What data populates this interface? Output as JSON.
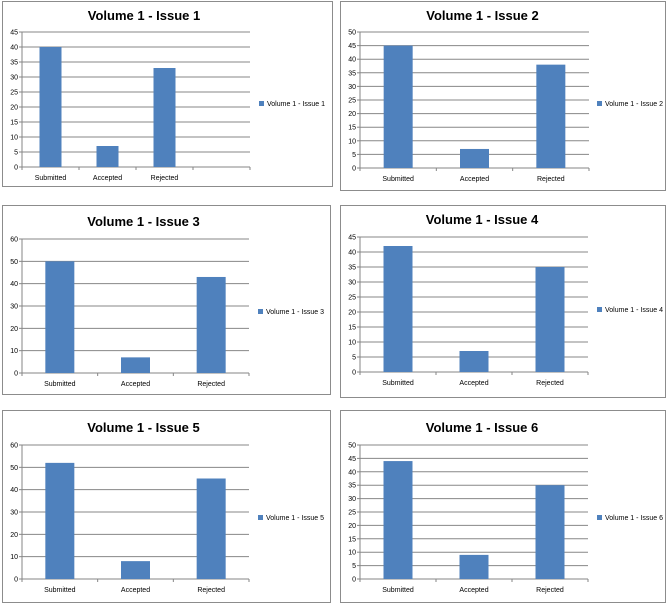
{
  "colors": {
    "bar": "#4f81bd",
    "grid": "#878787",
    "axis": "#868686"
  },
  "chart_data": [
    {
      "type": "bar",
      "title": "Volume 1 - Issue 1",
      "categories": [
        "Submitted",
        "Accepted",
        "Rejected"
      ],
      "series": [
        {
          "name": "Volume 1 - Issue 1",
          "values": [
            40,
            7,
            33
          ]
        }
      ],
      "ylim": [
        0,
        45
      ],
      "yticks": [
        "0",
        "5",
        "10",
        "15",
        "20",
        "25",
        "30",
        "35",
        "40",
        "45"
      ],
      "grid": true,
      "legend": "right"
    },
    {
      "type": "bar",
      "title": "Volume 1 - Issue 2",
      "categories": [
        "Submitted",
        "Accepted",
        "Rejected"
      ],
      "series": [
        {
          "name": "Volume 1 - Issue 2",
          "values": [
            45,
            7,
            38
          ]
        }
      ],
      "ylim": [
        0,
        50
      ],
      "yticks": [
        "0",
        "5",
        "10",
        "15",
        "20",
        "25",
        "30",
        "35",
        "40",
        "45",
        "50"
      ],
      "grid": true,
      "legend": "right"
    },
    {
      "type": "bar",
      "title": "Volume 1 - Issue 3",
      "categories": [
        "Submitted",
        "Accepted",
        "Rejected"
      ],
      "series": [
        {
          "name": "Volume 1 - Issue 3",
          "values": [
            50,
            7,
            43
          ]
        }
      ],
      "ylim": [
        0,
        60
      ],
      "yticks": [
        "0",
        "10",
        "20",
        "30",
        "40",
        "50",
        "60"
      ],
      "grid": true,
      "legend": "right"
    },
    {
      "type": "bar",
      "title": "Volume 1 - Issue 4",
      "categories": [
        "Submitted",
        "Accepted",
        "Rejected"
      ],
      "series": [
        {
          "name": "Volume 1 - Issue 4",
          "values": [
            42,
            7,
            35
          ]
        }
      ],
      "ylim": [
        0,
        45
      ],
      "yticks": [
        "0",
        "5",
        "10",
        "15",
        "20",
        "25",
        "30",
        "35",
        "40",
        "45"
      ],
      "grid": true,
      "legend": "right"
    },
    {
      "type": "bar",
      "title": "Volume 1 - Issue 5",
      "categories": [
        "Submitted",
        "Accepted",
        "Rejected"
      ],
      "series": [
        {
          "name": "Volume 1 - Issue 5",
          "values": [
            52,
            8,
            45
          ]
        }
      ],
      "ylim": [
        0,
        60
      ],
      "yticks": [
        "0",
        "10",
        "20",
        "30",
        "40",
        "50",
        "60"
      ],
      "grid": true,
      "legend": "right"
    },
    {
      "type": "bar",
      "title": "Volume 1 - Issue 6",
      "categories": [
        "Submitted",
        "Accepted",
        "Rejected"
      ],
      "series": [
        {
          "name": "Volume 1 - Issue 6",
          "values": [
            44,
            9,
            35
          ]
        }
      ],
      "ylim": [
        0,
        50
      ],
      "yticks": [
        "0",
        "5",
        "10",
        "15",
        "20",
        "25",
        "30",
        "35",
        "40",
        "45",
        "50"
      ],
      "grid": true,
      "legend": "right"
    }
  ]
}
